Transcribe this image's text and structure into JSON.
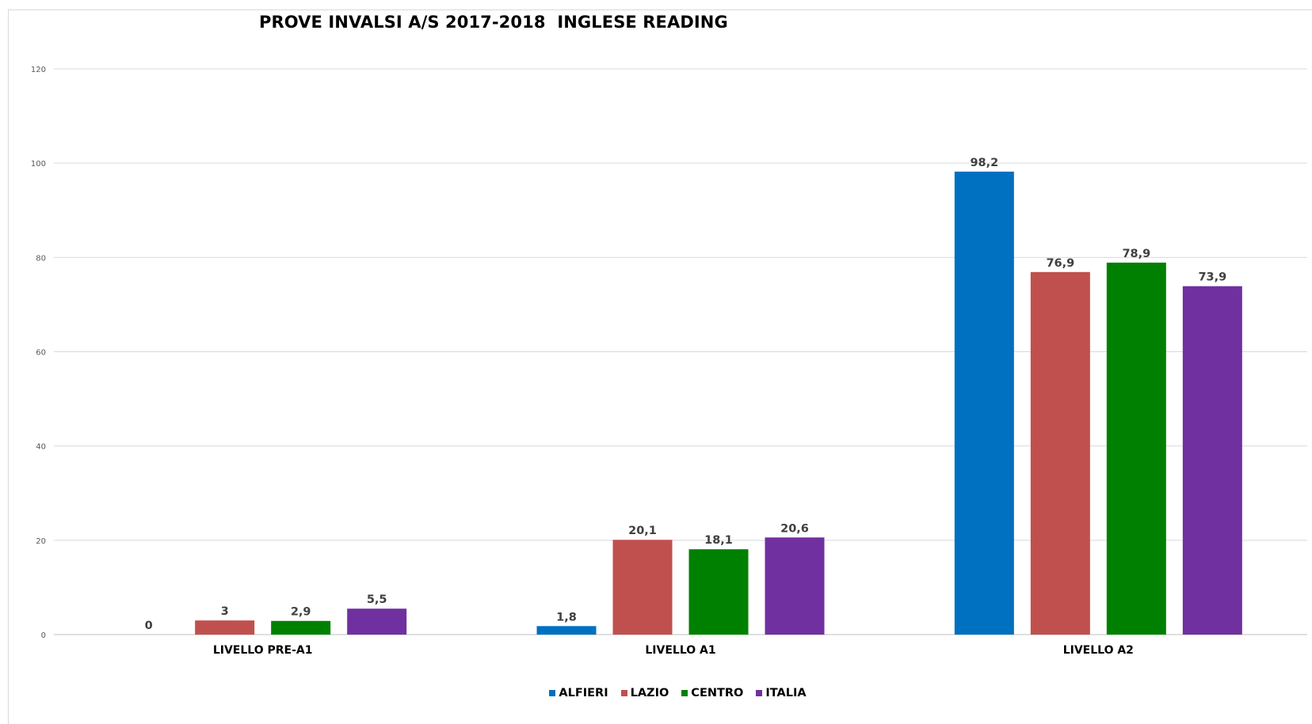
{
  "chart_data": {
    "type": "bar",
    "title": "PROVE INVALSI A/S 2017-2018  INGLESE READING",
    "categories": [
      "LIVELLO PRE-A1",
      "LIVELLO A1",
      "LIVELLO A2"
    ],
    "series": [
      {
        "name": "ALFIERI",
        "color": "#0070C0",
        "values": [
          0,
          1.8,
          98.2
        ],
        "labels": [
          "0",
          "1,8",
          "98,2"
        ]
      },
      {
        "name": "LAZIO",
        "color": "#C0504D",
        "values": [
          3,
          20.1,
          76.9
        ],
        "labels": [
          "3",
          "20,1",
          "76,9"
        ]
      },
      {
        "name": "CENTRO",
        "color": "#008000",
        "values": [
          2.9,
          18.1,
          78.9
        ],
        "labels": [
          "2,9",
          "18,1",
          "78,9"
        ]
      },
      {
        "name": "ITALIA",
        "color": "#7030A0",
        "values": [
          5.5,
          20.6,
          73.9
        ],
        "labels": [
          "5,5",
          "20,6",
          "73,9"
        ]
      }
    ],
    "yticks": [
      0,
      20,
      40,
      60,
      80,
      100,
      120
    ],
    "ylim": [
      0,
      120
    ],
    "grid": true,
    "legend_position": "bottom"
  }
}
